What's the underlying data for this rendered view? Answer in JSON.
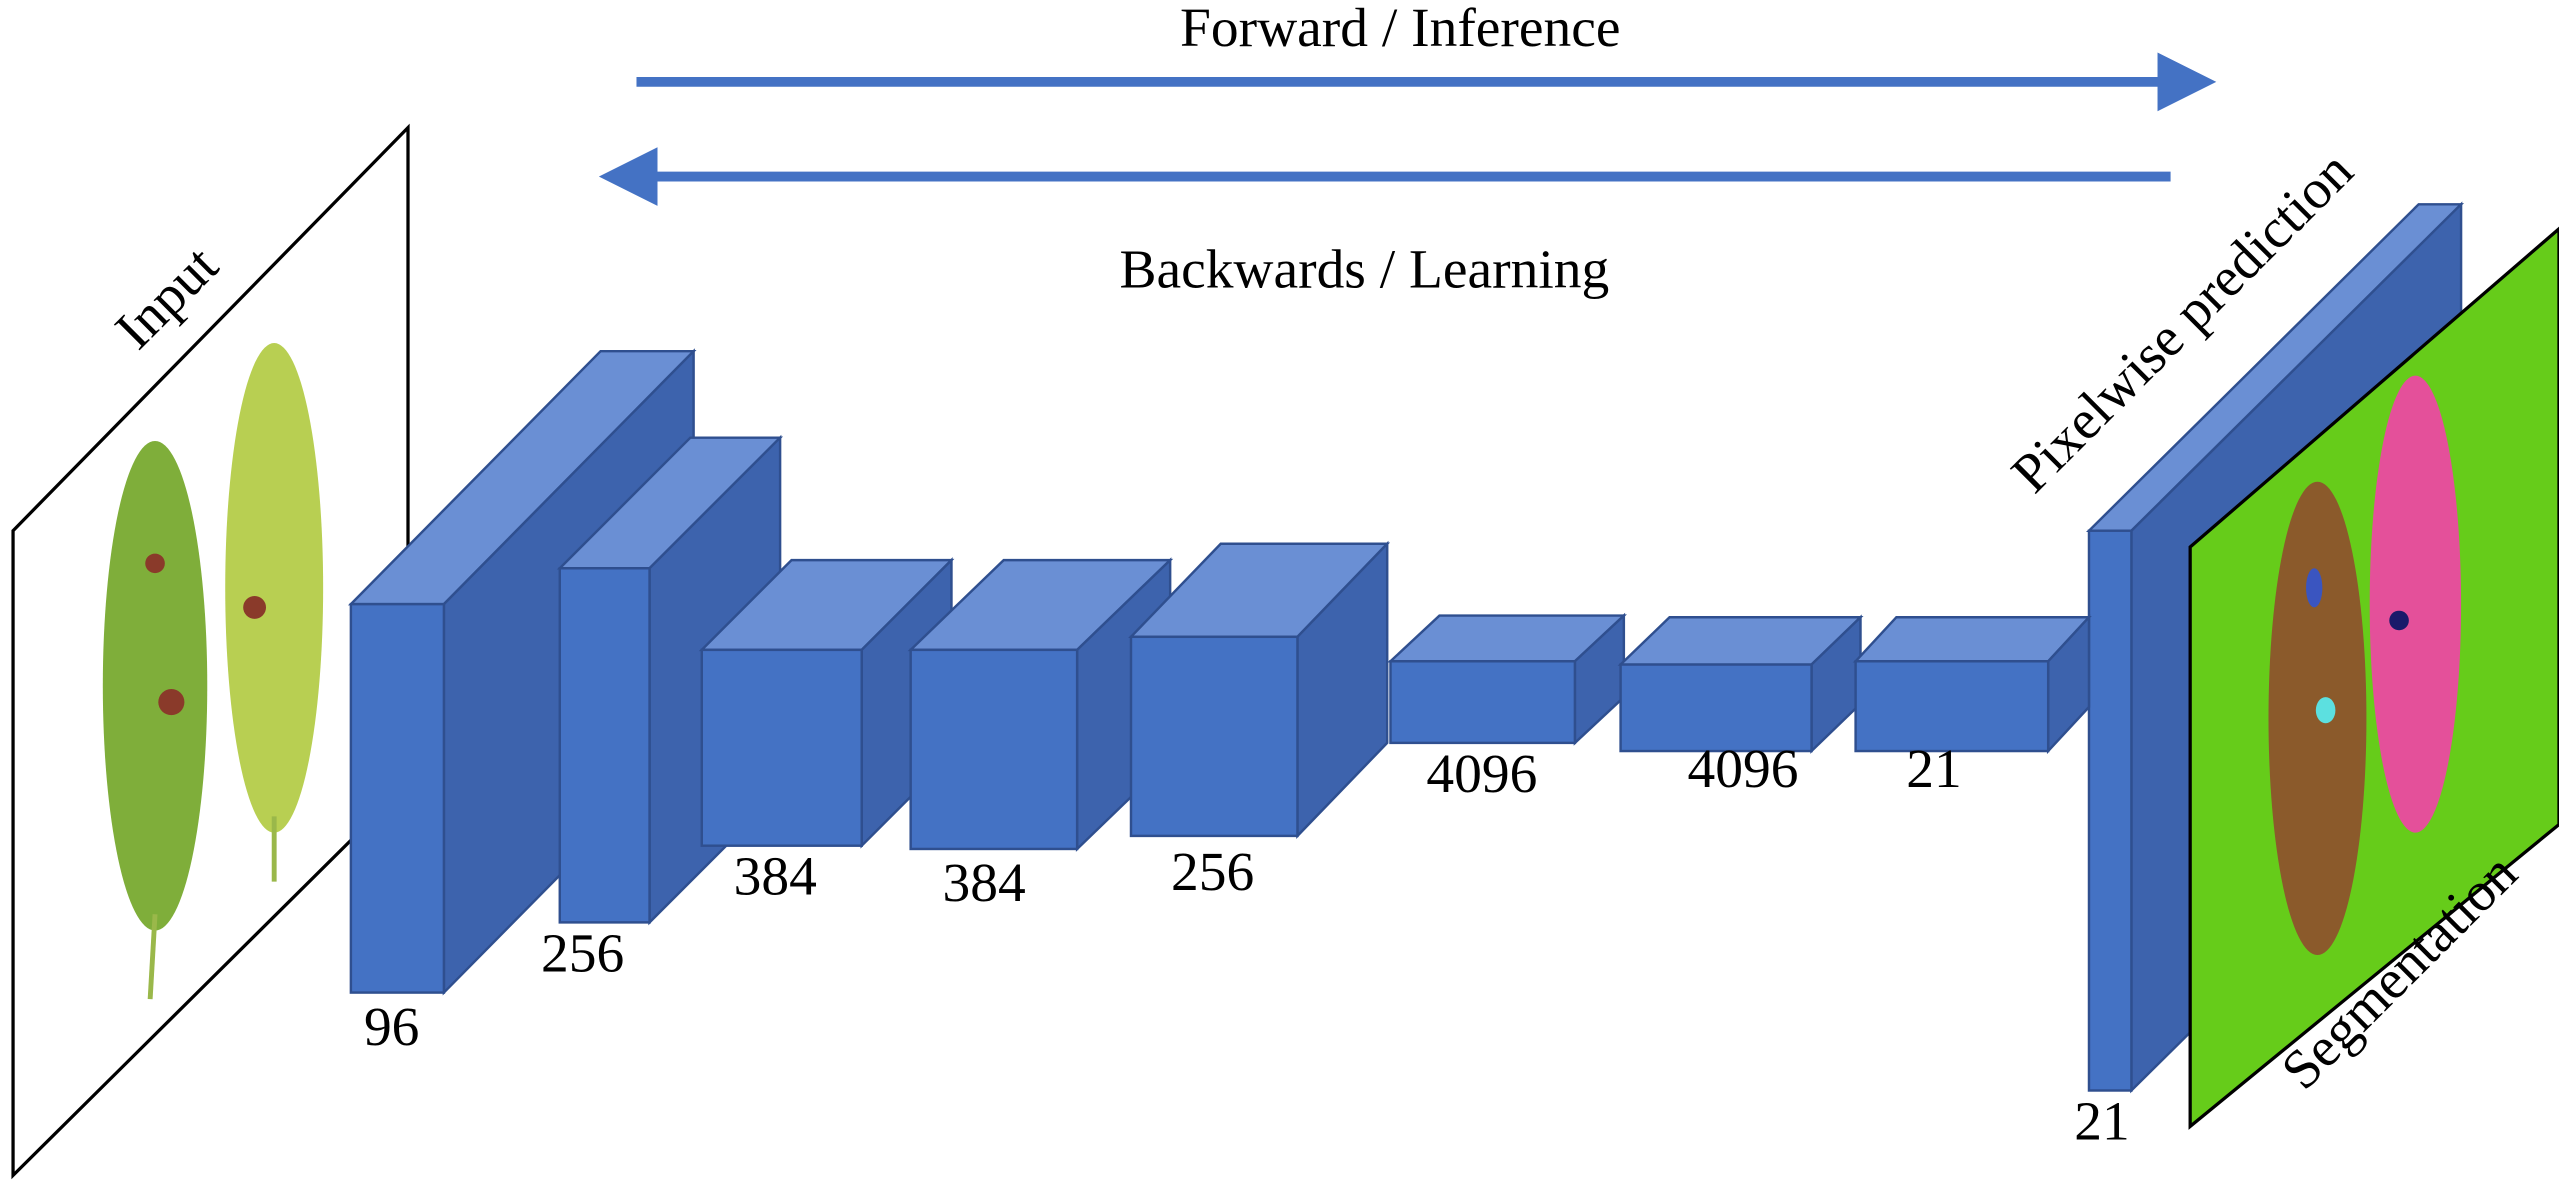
{
  "arrows": {
    "forward": "Forward / Inference",
    "backward": "Backwards / Learning"
  },
  "input": {
    "label": "Input"
  },
  "output": {
    "prediction": "Pixelwise prediction",
    "segmentation": "Segmentation"
  },
  "layers": [
    {
      "label": "96"
    },
    {
      "label": "256"
    },
    {
      "label": "384"
    },
    {
      "label": "384"
    },
    {
      "label": "256"
    },
    {
      "label": "4096"
    },
    {
      "label": "4096"
    },
    {
      "label": "21"
    },
    {
      "label": "21"
    }
  ]
}
